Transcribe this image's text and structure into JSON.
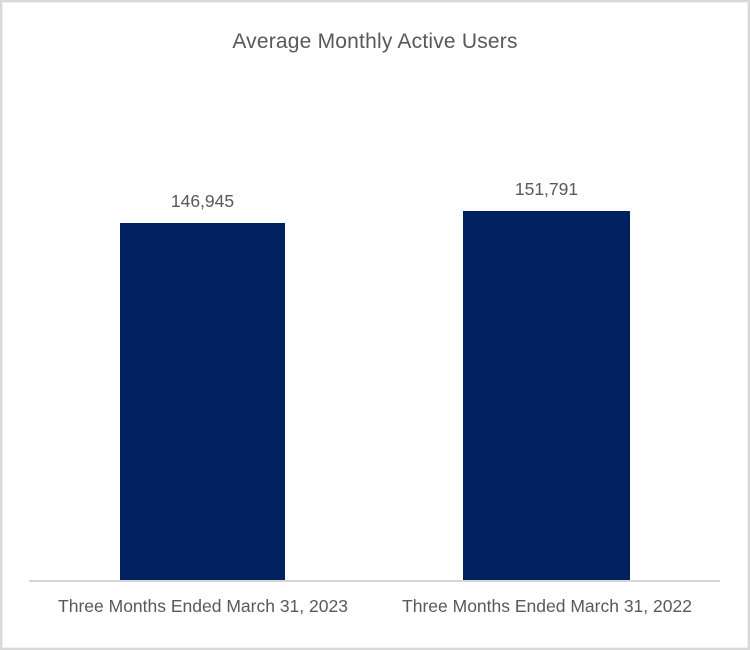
{
  "chart_data": {
    "type": "bar",
    "title": "Average Monthly Active Users",
    "categories": [
      "Three Months Ended March 31, 2023",
      "Three Months Ended March 31, 2022"
    ],
    "values": [
      146945,
      151791
    ],
    "data_labels": [
      "146,945",
      "151,791"
    ],
    "xlabel": "",
    "ylabel": "",
    "ylim": [
      0,
      151791
    ],
    "grid": false,
    "legend_position": "none",
    "bar_color": "#002060",
    "text_color": "#595959",
    "axis_line_color": "#d6d6d6",
    "frame_border_color": "#d9d9d9"
  }
}
